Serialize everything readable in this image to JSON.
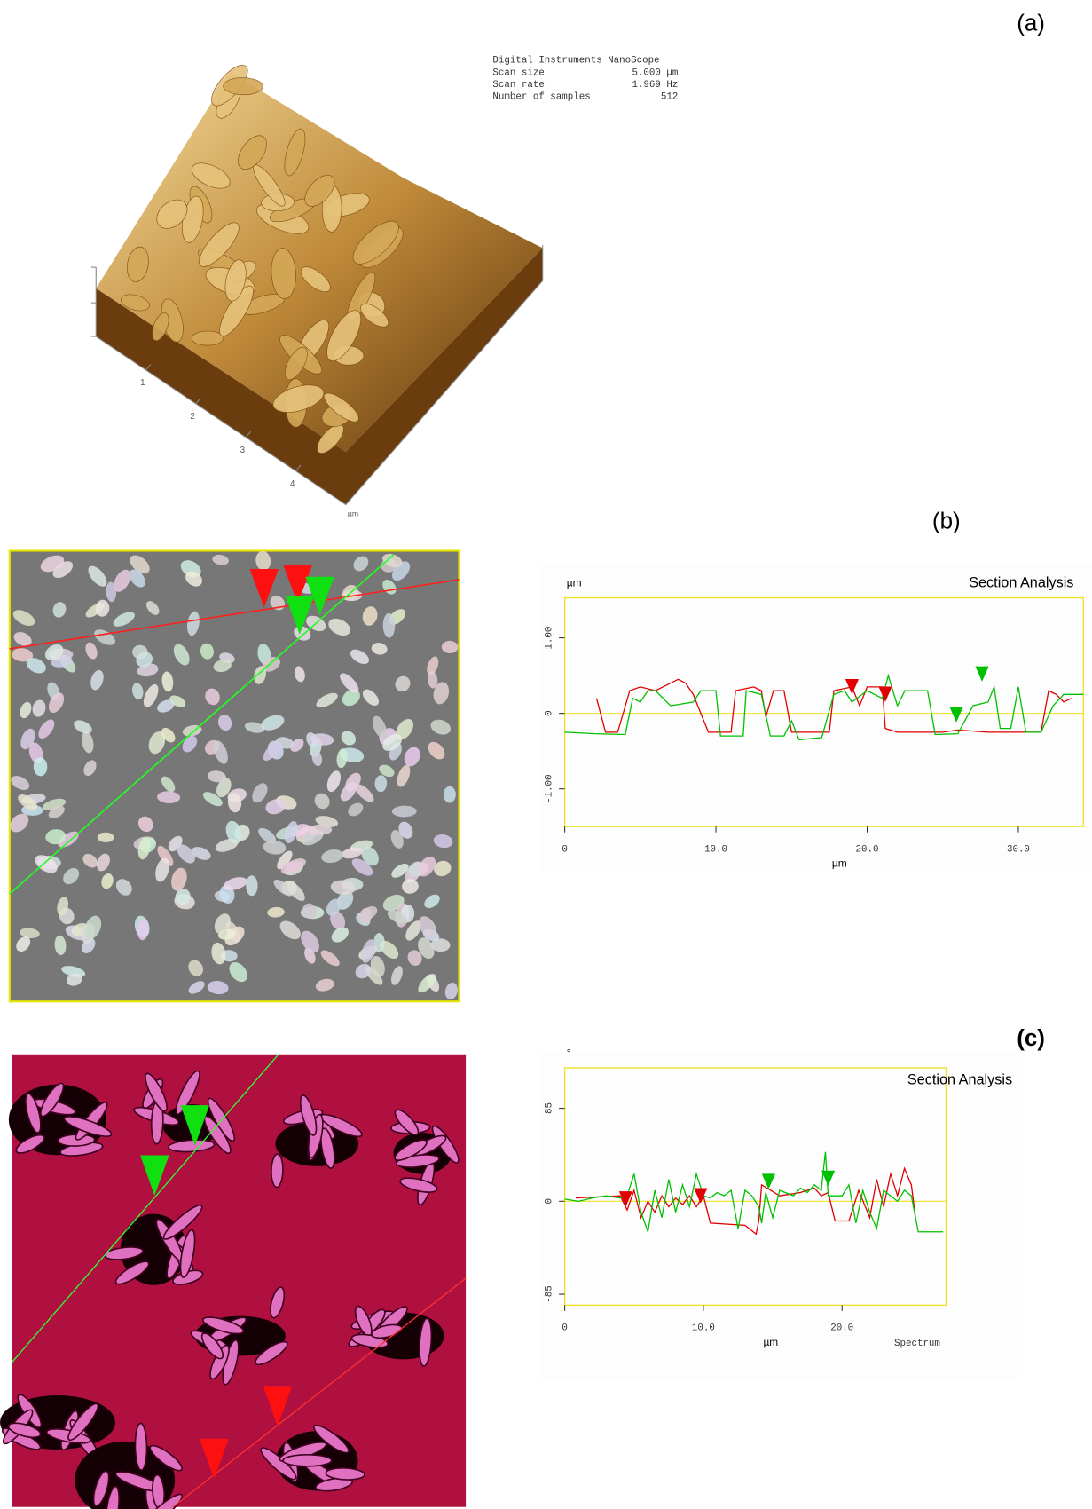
{
  "panels": {
    "a": "(a)",
    "b": "(b)",
    "c": "(c)"
  },
  "nanoscope": {
    "title": "Digital Instruments NanoScope",
    "rows": [
      [
        "Scan size",
        "5.000 µm"
      ],
      [
        "Scan rate",
        "1.969 Hz"
      ],
      [
        "Number of samples",
        "512"
      ]
    ]
  },
  "surface_axis": {
    "ticks": [
      "1",
      "2",
      "3",
      "4"
    ],
    "unit": "µm"
  },
  "chart_data": [
    {
      "type": "line",
      "title": "Section Analysis",
      "y_unit": "µm",
      "xlabel": "µm",
      "xlim": [
        0,
        34.3
      ],
      "ylim": [
        -1.5,
        1.53
      ],
      "xticks": [
        0,
        {
          "value": 10,
          "label": "10.0"
        },
        {
          "value": 20,
          "label": "20.0"
        },
        {
          "value": 30,
          "label": "30.0"
        }
      ],
      "yticks": [
        {
          "value": -1,
          "label": "-1.00"
        },
        0,
        {
          "value": 1,
          "label": "1.00"
        }
      ],
      "zero_line": true,
      "series": [
        {
          "color": "#e00000",
          "x": [
            2.1,
            2.7,
            3.5,
            4.3,
            5,
            6,
            7.5,
            8,
            8.5,
            9.5,
            11,
            11.3,
            12.5,
            13,
            13.3,
            13.8,
            14.5,
            15,
            17.5,
            17.8,
            19,
            19.5,
            20,
            21,
            21.2,
            22,
            25,
            26,
            28,
            31.5,
            32,
            32.5,
            33,
            33.5
          ],
          "values": [
            0.2,
            -0.25,
            -0.25,
            0.3,
            0.35,
            0.3,
            0.45,
            0.4,
            0.25,
            -0.25,
            -0.25,
            0.3,
            0.35,
            0.3,
            -0.05,
            0.3,
            0.3,
            -0.25,
            -0.25,
            0.3,
            0.35,
            0.1,
            0.35,
            0.35,
            -0.2,
            -0.25,
            -0.25,
            -0.22,
            -0.25,
            -0.25,
            0.3,
            0.25,
            0.15,
            0.2
          ]
        },
        {
          "color": "#00c000",
          "x": [
            0,
            2,
            4,
            4.5,
            5,
            5.5,
            6,
            7,
            8.5,
            9,
            10,
            10.3,
            11.8,
            12,
            13,
            13.6,
            14.5,
            15,
            15.5,
            17,
            17.8,
            18.5,
            19,
            20,
            21,
            21.4,
            22,
            22.5,
            24,
            24.5,
            26,
            27,
            28,
            28.4,
            28.8,
            29.5,
            30,
            30.5,
            31.5,
            32.3,
            33,
            34.3
          ],
          "values": [
            -0.25,
            -0.27,
            -0.28,
            0.2,
            0.15,
            0.3,
            0.3,
            0.1,
            0.15,
            0.3,
            0.3,
            -0.3,
            -0.3,
            0.3,
            0.25,
            -0.3,
            -0.3,
            -0.1,
            -0.35,
            -0.32,
            0.25,
            0.3,
            0.15,
            0.3,
            0.2,
            0.5,
            0.1,
            0.3,
            0.3,
            -0.28,
            -0.27,
            0.1,
            0.15,
            0.35,
            -0.2,
            -0.2,
            0.35,
            -0.25,
            -0.25,
            0.1,
            0.25,
            0.25
          ]
        }
      ],
      "markers": [
        {
          "color": "#e00000",
          "x": 19,
          "y": 0.25
        },
        {
          "color": "#e00000",
          "x": 21.2,
          "y": 0.15
        },
        {
          "color": "#00c000",
          "x": 25.9,
          "y": -0.12
        },
        {
          "color": "#00c000",
          "x": 27.6,
          "y": 0.42
        }
      ]
    },
    {
      "type": "line",
      "title": "Section Analysis",
      "y_unit": "°",
      "xlabel": "µm",
      "note": "Spectrum",
      "xlim": [
        0,
        27.5
      ],
      "ylim": [
        -95,
        122
      ],
      "xticks": [
        0,
        {
          "value": 10,
          "label": "10.0"
        },
        {
          "value": 20,
          "label": "20.0"
        }
      ],
      "yticks": [
        -85,
        0,
        85
      ],
      "zero_line": true,
      "series": [
        {
          "color": "#e00000",
          "x": [
            0.8,
            4,
            4.5,
            5,
            5.5,
            6,
            6.5,
            7,
            7.5,
            8,
            8.5,
            9,
            9.5,
            10,
            10.3,
            10.5,
            13,
            13.8,
            14,
            14.2,
            14.6,
            15.5,
            17,
            18,
            18.5,
            19,
            19.5,
            20.5,
            21.2,
            22,
            22.5,
            23,
            23.5,
            24,
            24.5,
            25,
            25.3
          ],
          "values": [
            3,
            5,
            -8,
            10,
            -15,
            0,
            -10,
            5,
            -5,
            3,
            -3,
            5,
            -5,
            5,
            -10,
            -20,
            -22,
            -30,
            -18,
            15,
            12,
            5,
            8,
            12,
            5,
            8,
            -18,
            -18,
            10,
            -15,
            20,
            -5,
            25,
            5,
            30,
            15,
            -15
          ]
        },
        {
          "color": "#00c000",
          "x": [
            0,
            1,
            2,
            3,
            4,
            4.5,
            5,
            5.5,
            6,
            6.5,
            7,
            7.5,
            8,
            8.5,
            9,
            9.5,
            10,
            10.5,
            11,
            11.5,
            12,
            12.5,
            13,
            13.5,
            14,
            14.2,
            14.5,
            15,
            15.5,
            16.5,
            17,
            17.5,
            18,
            18.5,
            18.8,
            19,
            20,
            20.5,
            21,
            21.5,
            22,
            22.5,
            23,
            24,
            24.5,
            25,
            25.5,
            27.3
          ],
          "values": [
            2,
            0,
            3,
            5,
            3,
            5,
            25,
            -10,
            -28,
            10,
            -15,
            20,
            -10,
            15,
            -5,
            25,
            5,
            3,
            8,
            5,
            10,
            -25,
            10,
            5,
            -5,
            -20,
            8,
            -15,
            10,
            5,
            12,
            8,
            15,
            10,
            45,
            5,
            5,
            15,
            -20,
            10,
            -10,
            -25,
            10,
            0,
            10,
            5,
            -28,
            -28
          ]
        }
      ],
      "markers": [
        {
          "color": "#e00000",
          "x": 4.4,
          "y": -5
        },
        {
          "color": "#e00000",
          "x": 9.8,
          "y": -2
        },
        {
          "color": "#00c000",
          "x": 14.7,
          "y": 11
        },
        {
          "color": "#00c000",
          "x": 19,
          "y": 14
        }
      ]
    }
  ]
}
